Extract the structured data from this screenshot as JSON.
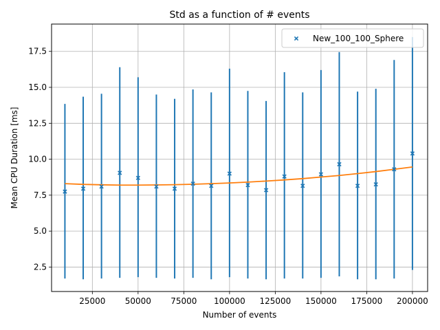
{
  "chart_data": {
    "type": "scatter",
    "title": "Std as a function of # events",
    "xlabel": "Number of events",
    "ylabel": "Mean CPU Duration [ms]",
    "xlim": [
      2700,
      208300
    ],
    "ylim": [
      0.8,
      19.4
    ],
    "xticks": [
      25000,
      50000,
      75000,
      100000,
      125000,
      150000,
      175000,
      200000
    ],
    "xtick_labels": [
      "25000",
      "50000",
      "75000",
      "100000",
      "125000",
      "150000",
      "175000",
      "200000"
    ],
    "yticks": [
      2.5,
      5.0,
      7.5,
      10.0,
      12.5,
      15.0,
      17.5
    ],
    "ytick_labels": [
      "2.5",
      "5.0",
      "7.5",
      "10.0",
      "12.5",
      "15.0",
      "17.5"
    ],
    "grid": true,
    "legend_position": "top-right",
    "series": [
      {
        "name": "New_100_100_Sphere",
        "color": "#1f77b4",
        "marker": "x",
        "x": [
          10000,
          20000,
          30000,
          40000,
          50000,
          60000,
          70000,
          80000,
          90000,
          100000,
          110000,
          120000,
          130000,
          140000,
          150000,
          160000,
          170000,
          180000,
          190000,
          200000
        ],
        "y": [
          7.75,
          7.95,
          8.1,
          9.05,
          8.7,
          8.1,
          7.95,
          8.3,
          8.15,
          9.0,
          8.2,
          7.85,
          8.8,
          8.15,
          8.95,
          9.65,
          8.15,
          8.25,
          9.3,
          10.4
        ],
        "y_low": [
          1.7,
          1.65,
          1.7,
          1.75,
          1.8,
          1.75,
          1.7,
          1.75,
          1.65,
          1.8,
          1.7,
          1.65,
          1.7,
          1.7,
          1.75,
          1.85,
          1.65,
          1.65,
          1.7,
          2.3
        ],
        "y_high": [
          13.85,
          14.35,
          14.55,
          16.4,
          15.7,
          14.5,
          14.2,
          14.85,
          14.65,
          16.3,
          14.75,
          14.05,
          16.05,
          14.65,
          16.2,
          17.45,
          14.7,
          14.9,
          16.9,
          18.5
        ]
      },
      {
        "type": "line",
        "color": "#ff7f0e",
        "x": [
          10000,
          20000,
          30000,
          40000,
          50000,
          60000,
          70000,
          80000,
          90000,
          100000,
          110000,
          120000,
          130000,
          140000,
          150000,
          160000,
          170000,
          180000,
          190000,
          200000
        ],
        "y": [
          8.3,
          8.25,
          8.22,
          8.2,
          8.2,
          8.21,
          8.23,
          8.26,
          8.3,
          8.35,
          8.41,
          8.48,
          8.56,
          8.65,
          8.76,
          8.87,
          9.0,
          9.14,
          9.3,
          9.46
        ]
      }
    ]
  }
}
